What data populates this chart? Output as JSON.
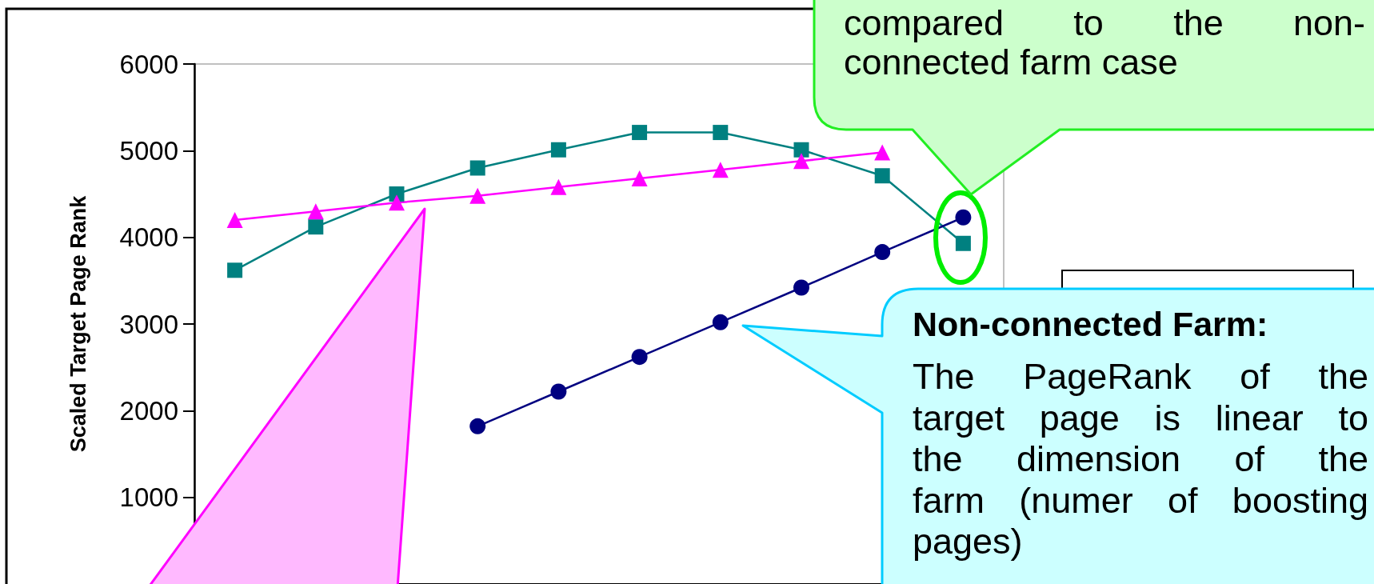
{
  "chart_data": {
    "type": "line",
    "ylabel": "Scaled Target Page Rank",
    "categories": [
      null,
      null,
      null,
      null,
      null,
      null,
      null,
      null,
      null,
      null
    ],
    "series": [
      {
        "color": "#008080",
        "marker": "square",
        "values": [
          3620,
          4120,
          4500,
          4800,
          5010,
          5210,
          5210,
          5010,
          4710,
          3930
        ]
      },
      {
        "color": "#ff00ff",
        "marker": "triangle",
        "values": [
          4200,
          4300,
          4400,
          4480,
          4580,
          4680,
          4780,
          4880,
          4980,
          null
        ]
      },
      {
        "color": "#000080",
        "marker": "circle",
        "values": [
          null,
          null,
          null,
          1820,
          2220,
          2620,
          3020,
          3420,
          3830,
          4230
        ]
      }
    ],
    "ylim": [
      0,
      6000
    ],
    "yticks": [
      1000,
      2000,
      3000,
      4000,
      5000,
      6000
    ],
    "tick_labels": "y",
    "annotations": [
      "compared to the non-\nconnected farm case",
      "Non-connected Farm:",
      "The PageRank of the\ntarget page is linear to\nthe dimension of the\nfarm (numer of boosting\npages)"
    ]
  }
}
